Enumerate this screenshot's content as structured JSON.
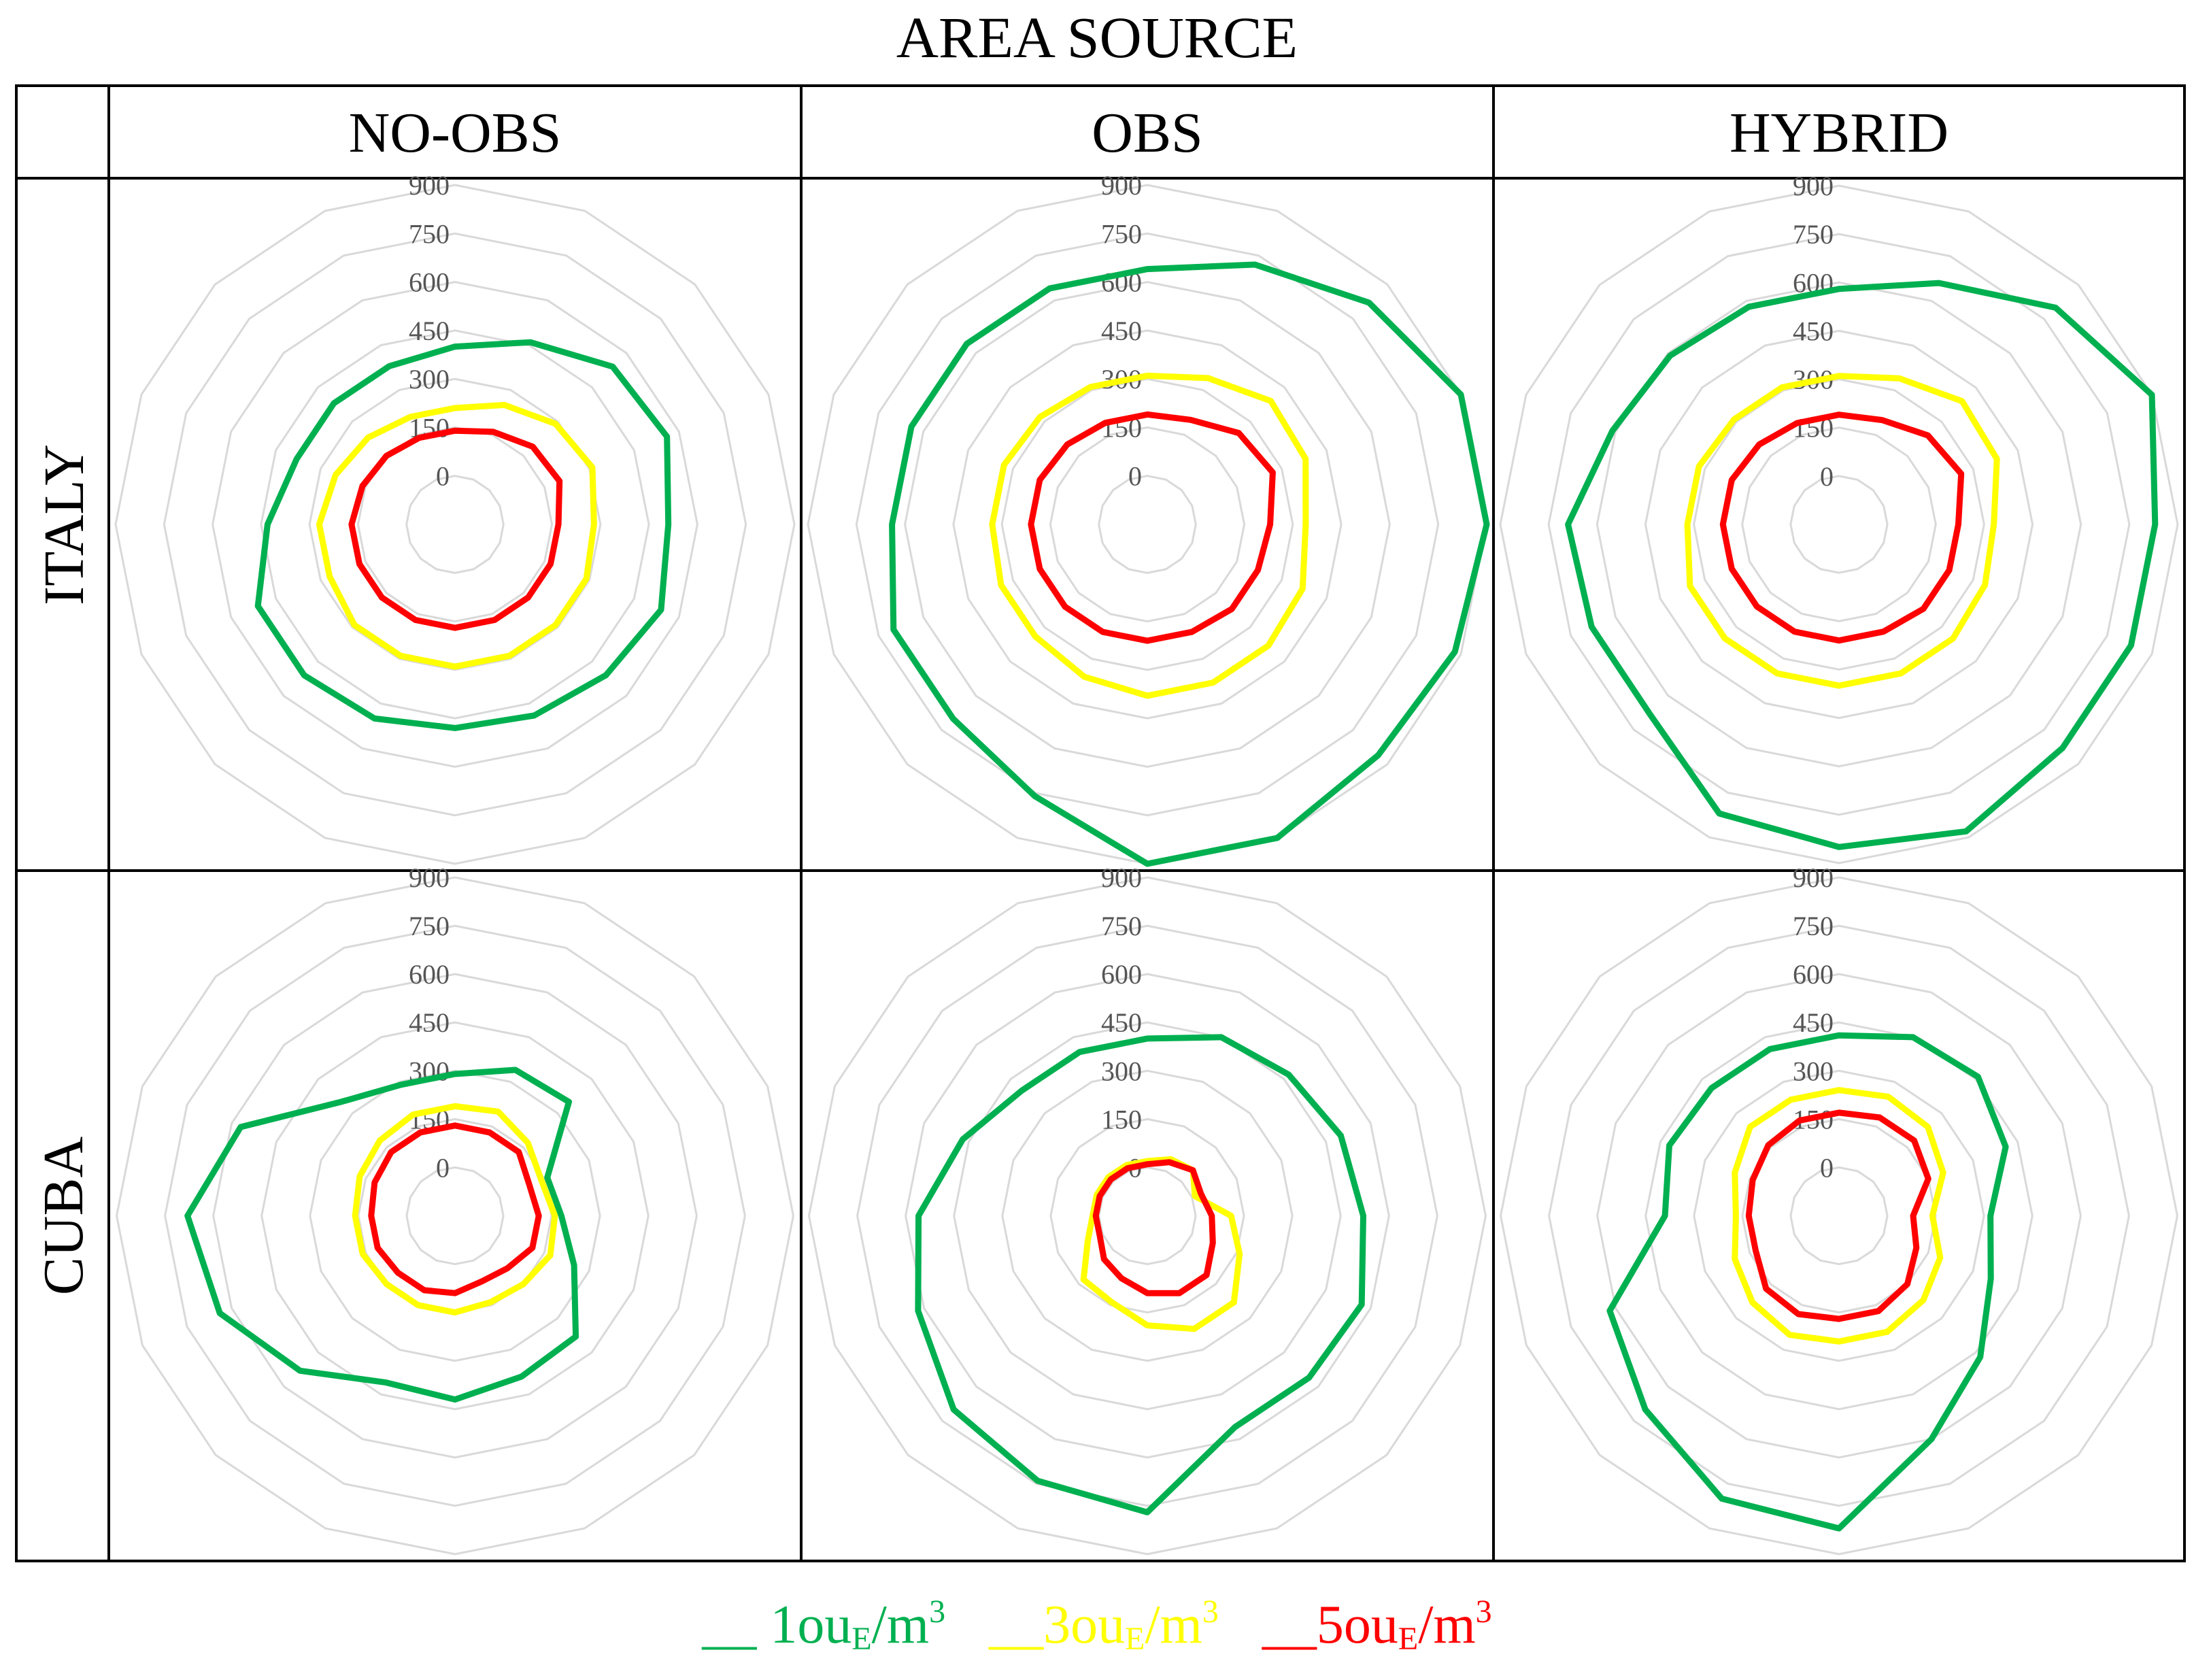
{
  "title": "AREA SOURCE",
  "columns": [
    "NO-OBS",
    "OBS",
    "HYBRID"
  ],
  "rows": [
    "ITALY",
    "CUBA"
  ],
  "ticks": [
    "0",
    "150",
    "300",
    "450",
    "600",
    "750",
    "900"
  ],
  "legend": [
    {
      "prefix": "__ ",
      "main": "1ou",
      "sub": "E",
      "mid": "/m",
      "sup": "3",
      "color": "#00b050"
    },
    {
      "prefix": "__",
      "main": "3ou",
      "sub": "E",
      "mid": "/m",
      "sup": "3",
      "color": "#ffff00"
    },
    {
      "prefix": "__",
      "main": "5ou",
      "sub": "E",
      "mid": "/m",
      "sup": "3",
      "color": "#ff0000"
    }
  ],
  "colors": {
    "green": "#00b050",
    "yellow": "#ffff00",
    "red": "#ff0000",
    "grid": "#d9d9d9",
    "tick": "#595959"
  },
  "chart_data": {
    "type": "radar",
    "title": "AREA SOURCE",
    "axis_range": [
      0,
      900
    ],
    "inner_offset": 150,
    "directions": 16,
    "direction_order": "clockwise from north",
    "series_names": [
      "1ouE/m3",
      "3ouE/m3",
      "5ouE/m3"
    ],
    "panels": [
      {
        "row": "ITALY",
        "column": "NO-OBS",
        "series": [
          {
            "name": "1ouE/m3",
            "color": "#00b050",
            "values": [
              400,
              460,
              540,
              560,
              510,
              540,
              510,
              490,
              480,
              500,
              510,
              510,
              430,
              380,
              380,
              380
            ]
          },
          {
            "name": "3ouE/m3",
            "color": "#ffff00",
            "values": [
              210,
              250,
              290,
              310,
              280,
              290,
              290,
              290,
              290,
              290,
              290,
              270,
              270,
              250,
              230,
              210
            ]
          },
          {
            "name": "5ouE/m3",
            "color": "#ff0000",
            "values": [
              140,
              160,
              190,
              200,
              170,
              170,
              170,
              170,
              170,
              170,
              170,
              170,
              170,
              160,
              150,
              140
            ]
          }
        ]
      },
      {
        "row": "ITALY",
        "column": "OBS",
        "series": [
          {
            "name": "1ouE/m3",
            "color": "#00b050",
            "values": [
              640,
              720,
              820,
              900,
              900,
              880,
              860,
              900,
              900,
              760,
              700,
              700,
              640,
              640,
              640,
              640
            ]
          },
          {
            "name": "3ouE/m3",
            "color": "#ffff00",
            "values": [
              310,
              340,
              390,
              380,
              340,
              370,
              380,
              380,
              380,
              360,
              340,
              340,
              330,
              330,
              320,
              310
            ]
          },
          {
            "name": "5ouE/m3",
            "color": "#ff0000",
            "values": [
              190,
              200,
              250,
              270,
              230,
              220,
              220,
              210,
              210,
              210,
              210,
              210,
              210,
              210,
              200,
              190
            ]
          }
        ]
      },
      {
        "row": "ITALY",
        "column": "HYBRID",
        "series": [
          {
            "name": "1ouE/m3",
            "color": "#00b050",
            "values": [
              580,
              660,
              800,
              900,
              830,
              830,
              830,
              880,
              850,
              820,
              680,
              680,
              690,
              610,
              590,
              580
            ]
          },
          {
            "name": "3ouE/m3",
            "color": "#ffff00",
            "values": [
              310,
              340,
              390,
              380,
              330,
              340,
              350,
              350,
              350,
              350,
              350,
              350,
              320,
              320,
              310,
              310
            ]
          },
          {
            "name": "5ouE/m3",
            "color": "#ff0000",
            "values": [
              190,
              200,
              240,
              260,
              220,
              220,
              220,
              210,
              210,
              210,
              210,
              210,
              210,
              210,
              200,
              190
            ]
          }
        ]
      },
      {
        "row": "CUBA",
        "column": "NO-OBS",
        "series": [
          {
            "name": "1ouE/m3",
            "color": "#00b050",
            "values": [
              290,
              340,
              350,
              160,
              180,
              250,
              380,
              390,
              420,
              410,
              530,
              640,
              680,
              570,
              350,
              290
            ]
          },
          {
            "name": "3ouE/m3",
            "color": "#ffff00",
            "values": [
              190,
              200,
              170,
              140,
              160,
              170,
              150,
              140,
              150,
              150,
              150,
              160,
              160,
              170,
              180,
              190
            ]
          },
          {
            "name": "5ouE/m3",
            "color": "#ff0000",
            "values": [
              130,
              130,
              130,
              100,
              110,
              110,
              80,
              70,
              90,
              100,
              100,
              110,
              110,
              120,
              130,
              130
            ]
          }
        ]
      },
      {
        "row": "CUBA",
        "column": "OBS",
        "series": [
          {
            "name": "1ouE/m3",
            "color": "#00b050",
            "values": [
              400,
              450,
              470,
              500,
              520,
              570,
              560,
              560,
              770,
              740,
              700,
              620,
              560,
              470,
              400,
              400
            ]
          },
          {
            "name": "3ouE/m3",
            "color": "#ffff00",
            "values": [
              20,
              40,
              50,
              10,
              110,
              160,
              230,
              230,
              190,
              140,
              130,
              50,
              20,
              20,
              20,
              20
            ]
          },
          {
            "name": "5ouE/m3",
            "color": "#ff0000",
            "values": [
              10,
              30,
              50,
              30,
              50,
              70,
              110,
              110,
              90,
              60,
              40,
              10,
              10,
              10,
              10,
              10
            ]
          }
        ]
      },
      {
        "row": "CUBA",
        "column": "HYBRID",
        "series": [
          {
            "name": "1ouE/m3",
            "color": "#00b050",
            "values": [
              410,
              450,
              460,
              410,
              320,
              360,
              470,
              600,
              820,
              800,
              700,
              620,
              390,
              420,
              410,
              410
            ]
          },
          {
            "name": "3ouE/m3",
            "color": "#ffff00",
            "values": [
              240,
              250,
              240,
              200,
              140,
              190,
              220,
              240,
              240,
              250,
              230,
              200,
              170,
              200,
              240,
              240
            ]
          },
          {
            "name": "5ouE/m3",
            "color": "#ff0000",
            "values": [
              170,
              180,
              180,
              150,
              80,
              110,
              150,
              170,
              170,
              180,
              170,
              130,
              130,
              140,
              160,
              170
            ]
          }
        ]
      }
    ]
  }
}
